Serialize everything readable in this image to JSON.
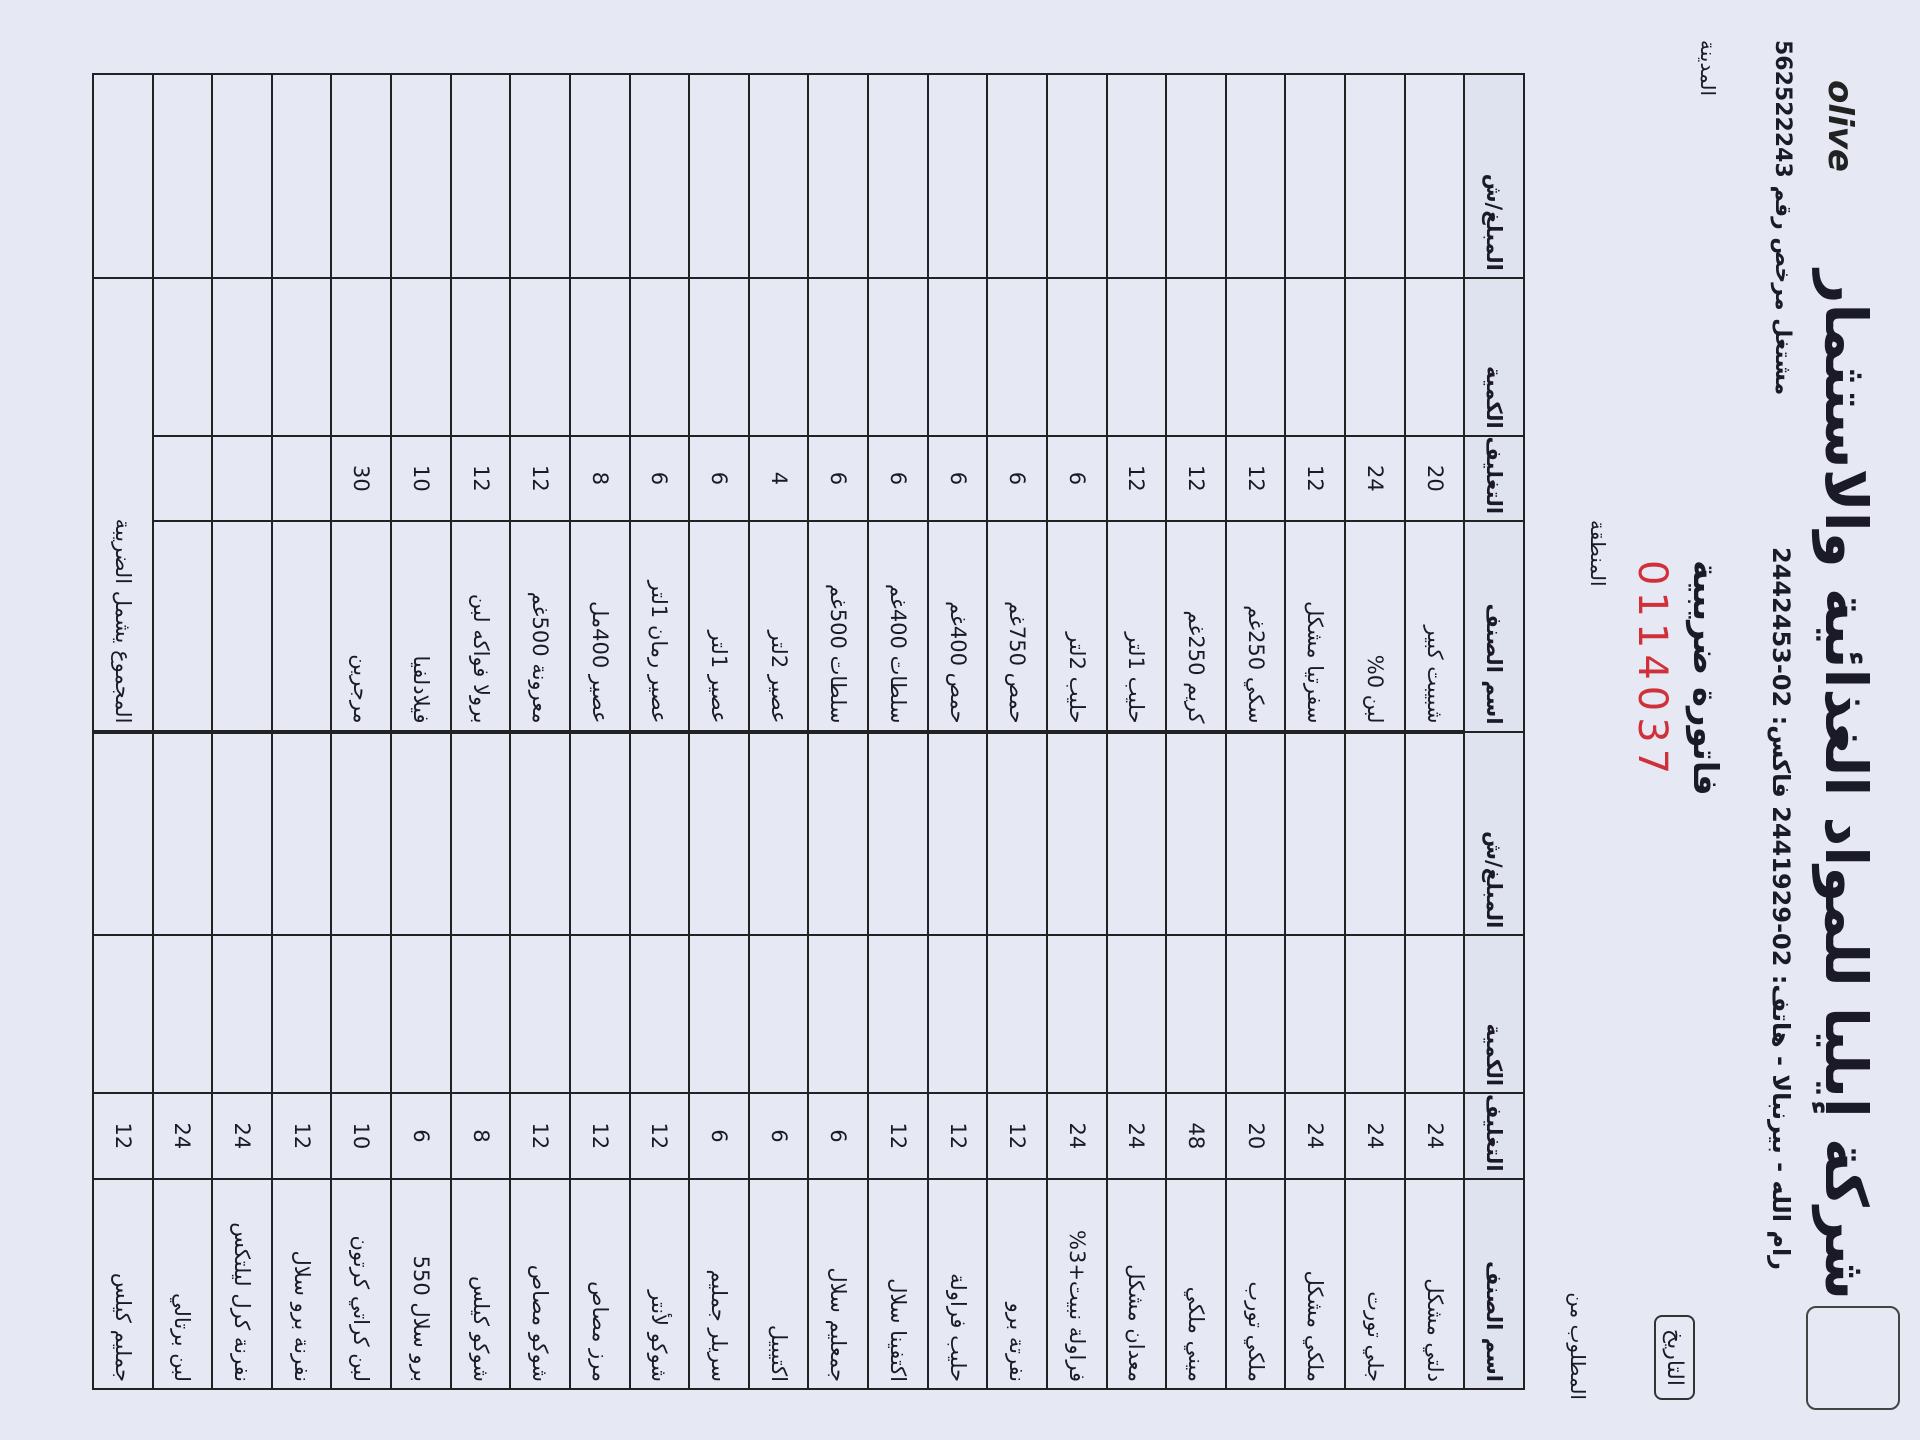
{
  "header": {
    "company": "شركة إيليا للمواد الغذائية والاستثمار",
    "address": "رام الله - بيرنبالا - هاتف: 02-2441929 فاكس: 02-2442453",
    "license": "مشتغل مرخص رقم 562522243",
    "brand": "olive",
    "title": "فاتورة ضريبية",
    "number": "0114037",
    "to_label": "المطلوب من",
    "date_label": "التاريخ",
    "area_label": "المنطقة",
    "city_label": "المدينة"
  },
  "table": {
    "columns": [
      "اسم الصنف",
      "التغليف",
      "الكمية",
      "المبلغ/ش"
    ],
    "right_rows": [
      [
        "دلتي مشكل",
        24
      ],
      [
        "جلي تورت",
        24
      ],
      [
        "ملكي مشكل",
        24
      ],
      [
        "ملكي تورب",
        20
      ],
      [
        "ميني ملكي",
        48
      ],
      [
        "معدان مشكل",
        24
      ],
      [
        "فراولة نبيت+3%",
        24
      ],
      [
        "نفرتة برو",
        12
      ],
      [
        "حليب فراولة",
        12
      ],
      [
        "اكتفينا سلال",
        12
      ],
      [
        "جمعليم سلال",
        6
      ],
      [
        "اكتيبيل",
        6
      ],
      [
        "سريلر جمليم",
        6
      ],
      [
        "شوكو لأنتر",
        12
      ],
      [
        "مرز مصاص",
        12
      ],
      [
        "شوكو مصاص",
        12
      ],
      [
        "شوكو كيلس",
        8
      ],
      [
        "برو سلال 550",
        6
      ],
      [
        "لبن كراتي كرتون",
        10
      ],
      [
        "نفرنة برو سلال",
        12
      ],
      [
        "نفرنة كرل ليلتكس",
        24
      ],
      [
        "لبن برتالي",
        24
      ],
      [
        "جمليم كيلس",
        12
      ]
    ],
    "left_rows": [
      [
        "شبيبت كبير",
        20
      ],
      [
        "لبن 0%",
        24
      ],
      [
        "سفرتيا مشكل",
        12
      ],
      [
        "سكي 250غم",
        12
      ],
      [
        "كريم 250غم",
        12
      ],
      [
        "حليب 1لتر",
        12
      ],
      [
        "حليب 2لتر",
        6
      ],
      [
        "حمص 750غم",
        6
      ],
      [
        "حمص 400غم",
        6
      ],
      [
        "سلطات 400غم",
        6
      ],
      [
        "سلطات 500غم",
        6
      ],
      [
        "عصير 2لتر",
        4
      ],
      [
        "عصير 1لتر",
        6
      ],
      [
        "عصير رمان 1لتر",
        6
      ],
      [
        "عصير 400مل",
        8
      ],
      [
        "معرونة 500غم",
        12
      ],
      [
        "برولا فواكه لبن",
        12
      ],
      [
        "فيلادلفيا",
        10
      ],
      [
        "مرجرين",
        30
      ]
    ],
    "total_label": "المجموع يشمل الضريبة"
  }
}
